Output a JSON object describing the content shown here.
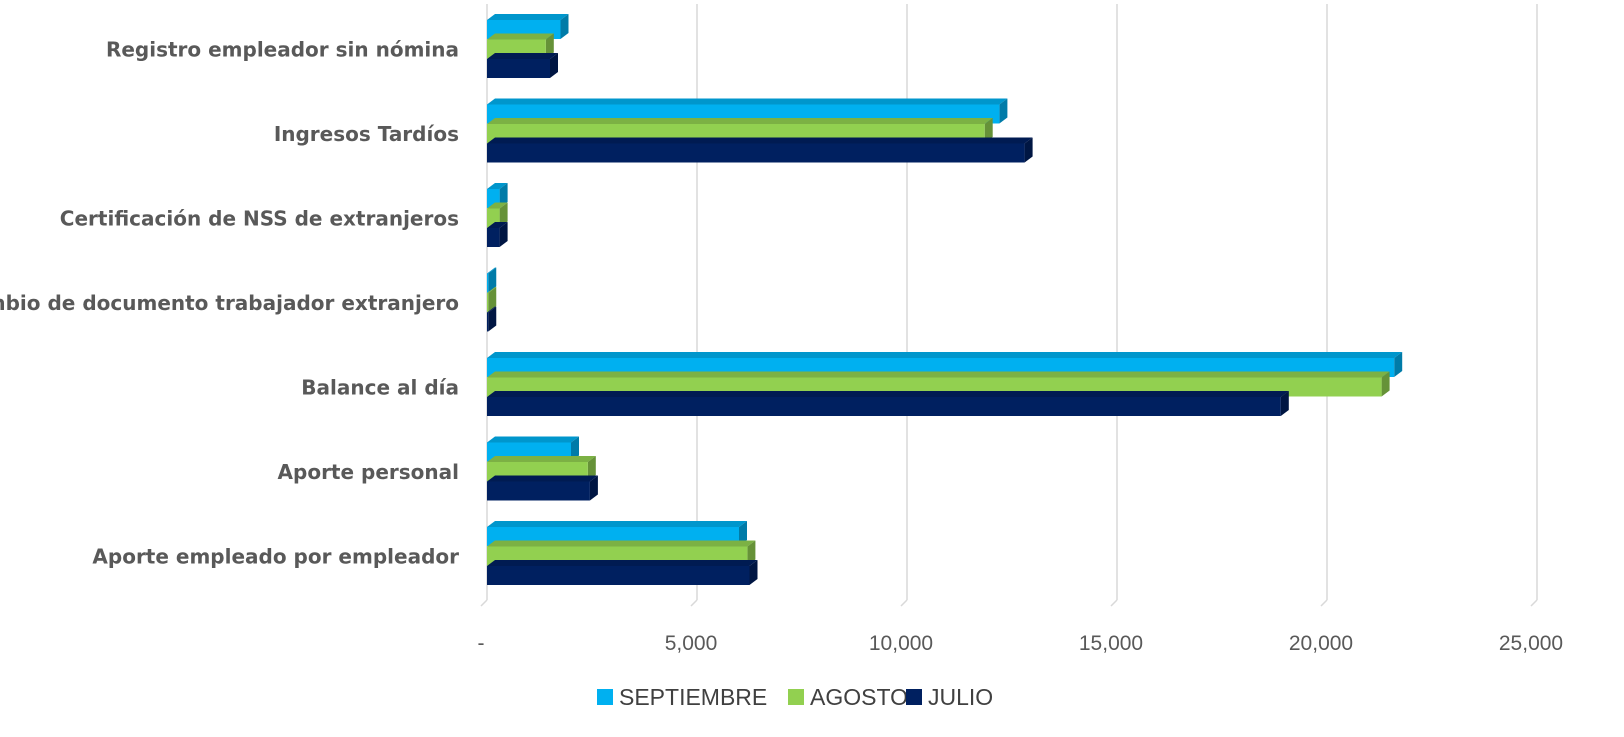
{
  "chart_data": {
    "type": "bar",
    "orientation": "horizontal",
    "style": "3d-clustered",
    "categories": [
      "Registro empleador sin nómina",
      "Ingresos Tardíos",
      "Certificación de NSS de extranjeros",
      "Cambio de documento trabajador extranjero",
      "Balance al día",
      "Aporte personal",
      "Aporte empleado por empleador"
    ],
    "series": [
      {
        "name": "SEPTIEMBRE",
        "color": "#00b0f0",
        "values": [
          1750,
          12200,
          300,
          30,
          21600,
          2000,
          6000
        ]
      },
      {
        "name": "AGOSTO",
        "color": "#92d050",
        "values": [
          1400,
          11850,
          300,
          30,
          21300,
          2400,
          6200
        ]
      },
      {
        "name": "JULIO",
        "color": "#002060",
        "values": [
          1500,
          12800,
          300,
          30,
          18900,
          2450,
          6250
        ]
      }
    ],
    "xlim": [
      0,
      25000
    ],
    "x_ticks": [
      0,
      5000,
      10000,
      15000,
      20000,
      25000
    ],
    "x_tick_labels": [
      "-",
      "5,000",
      "10,000",
      "15,000",
      "20,000",
      "25,000"
    ],
    "grid": true,
    "legend_position": "bottom",
    "title": "",
    "xlabel": "",
    "ylabel": ""
  }
}
